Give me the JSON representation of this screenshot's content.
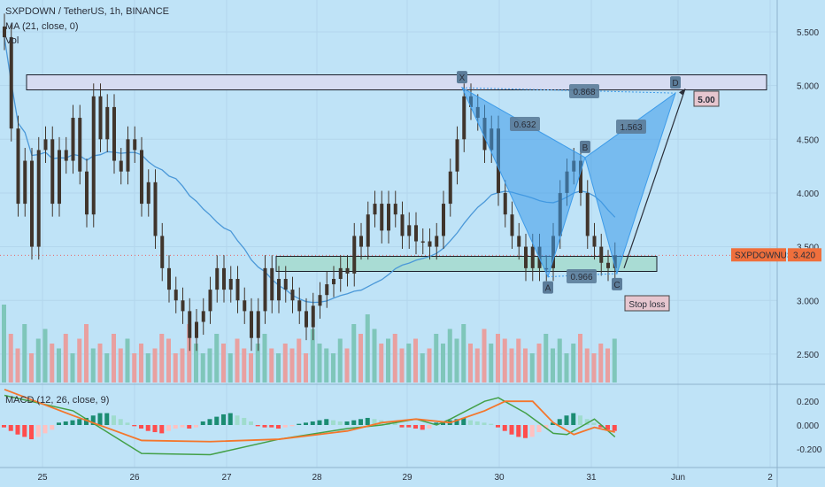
{
  "header": {
    "symbol_line": "SXPDOWN / TetherUS, 1h, BINANCE",
    "ma_line": "MA (21, close, 0)",
    "vol_line": "Vol",
    "macd_line": "MACD (12, 26, close, 9)"
  },
  "colors": {
    "background": "#bfe3f7",
    "bull": "#26a69a",
    "bear": "#ef5350",
    "candle_body": "#40352c",
    "ma": "#4b98d8",
    "pattern": "#3d9be9",
    "macd_line": "#43a047",
    "signal_line": "#f4762b"
  },
  "chart_data": {
    "type": "candlestick",
    "x_ticks": [
      "25",
      "26",
      "27",
      "28",
      "29",
      "30",
      "31",
      "Jun",
      "2"
    ],
    "y_ticks": [
      "5.500",
      "5.000",
      "4.500",
      "4.000",
      "3.500",
      "3.000",
      "2.500"
    ],
    "ylim": [
      2.15,
      5.75
    ],
    "close_series": [
      [
        0,
        5.45
      ],
      [
        1,
        4.6
      ],
      [
        2,
        3.9
      ],
      [
        3,
        4.3
      ],
      [
        4,
        3.5
      ],
      [
        5,
        4.4
      ],
      [
        6,
        4.5
      ],
      [
        7,
        3.9
      ],
      [
        8,
        4.4
      ],
      [
        9,
        4.3
      ],
      [
        10,
        4.7
      ],
      [
        11,
        4.2
      ],
      [
        12,
        3.8
      ],
      [
        13,
        4.9
      ],
      [
        14,
        4.5
      ],
      [
        15,
        4.8
      ],
      [
        16,
        4.3
      ],
      [
        17,
        4.2
      ],
      [
        18,
        4.5
      ],
      [
        19,
        4.4
      ],
      [
        20,
        3.9
      ],
      [
        21,
        4.1
      ],
      [
        22,
        3.6
      ],
      [
        23,
        3.3
      ],
      [
        24,
        3.1
      ],
      [
        25,
        3.0
      ],
      [
        26,
        2.9
      ],
      [
        27,
        2.65
      ],
      [
        28,
        2.8
      ],
      [
        29,
        2.9
      ],
      [
        30,
        3.1
      ],
      [
        31,
        3.3
      ],
      [
        32,
        3.1
      ],
      [
        33,
        3.2
      ],
      [
        34,
        3.0
      ],
      [
        35,
        2.9
      ],
      [
        36,
        2.65
      ],
      [
        37,
        2.9
      ],
      [
        38,
        3.3
      ],
      [
        39,
        3.0
      ],
      [
        40,
        3.2
      ],
      [
        41,
        3.1
      ],
      [
        42,
        3.0
      ],
      [
        43,
        2.9
      ],
      [
        44,
        2.75
      ],
      [
        45,
        2.95
      ],
      [
        46,
        3.05
      ],
      [
        47,
        3.15
      ],
      [
        48,
        3.2
      ],
      [
        49,
        3.3
      ],
      [
        50,
        3.25
      ],
      [
        51,
        3.6
      ],
      [
        52,
        3.5
      ],
      [
        53,
        3.8
      ],
      [
        54,
        3.9
      ],
      [
        55,
        3.65
      ],
      [
        56,
        3.9
      ],
      [
        57,
        3.8
      ],
      [
        58,
        3.6
      ],
      [
        59,
        3.7
      ],
      [
        60,
        3.55
      ],
      [
        61,
        3.55
      ],
      [
        62,
        3.5
      ],
      [
        63,
        3.6
      ],
      [
        64,
        3.9
      ],
      [
        65,
        4.2
      ],
      [
        66,
        4.5
      ],
      [
        67,
        4.9
      ],
      [
        68,
        4.8
      ],
      [
        69,
        4.7
      ],
      [
        70,
        4.4
      ],
      [
        71,
        4.6
      ],
      [
        72,
        4.0
      ],
      [
        73,
        3.8
      ],
      [
        74,
        3.6
      ],
      [
        75,
        3.5
      ],
      [
        76,
        3.3
      ],
      [
        77,
        3.5
      ],
      [
        78,
        3.3
      ],
      [
        79,
        3.3
      ],
      [
        80,
        3.6
      ],
      [
        81,
        4.0
      ],
      [
        82,
        4.2
      ],
      [
        83,
        4.3
      ],
      [
        84,
        4.0
      ],
      [
        85,
        3.6
      ],
      [
        86,
        3.5
      ],
      [
        87,
        3.35
      ],
      [
        88,
        3.3
      ],
      [
        89,
        3.42
      ]
    ],
    "ma_label": "MA (21, close, 0)",
    "current_price_label": "SXPDOWNUSDT",
    "current_price": "3.420",
    "pattern_points": [
      {
        "label": "X",
        "value": 4.98
      },
      {
        "label": "A",
        "value": 3.22
      },
      {
        "label": "B",
        "value": 4.33
      },
      {
        "label": "C",
        "value": 3.25
      },
      {
        "label": "D",
        "value": 4.93
      }
    ],
    "ratios": [
      "0.868",
      "0.632",
      "1.563",
      "0.966"
    ],
    "zones": [
      {
        "name": "resistance",
        "low": 4.96,
        "high": 5.1
      },
      {
        "name": "support",
        "low": 3.27,
        "high": 3.41
      }
    ],
    "annotations": [
      {
        "text": "5.00",
        "value": 5.0
      },
      {
        "text": "Stop loss",
        "value": 3.0
      }
    ],
    "volume": [
      0.8,
      0.5,
      0.35,
      0.6,
      0.3,
      0.45,
      0.55,
      0.4,
      0.35,
      0.5,
      0.3,
      0.45,
      0.6,
      0.35,
      0.4,
      0.3,
      0.5,
      0.35,
      0.45,
      0.3,
      0.4,
      0.3,
      0.35,
      0.5,
      0.45,
      0.3,
      0.35,
      0.6,
      0.4,
      0.3,
      0.35,
      0.5,
      0.4,
      0.3,
      0.45,
      0.35,
      0.3,
      0.4,
      0.5,
      0.35,
      0.3,
      0.4,
      0.35,
      0.45,
      0.3,
      0.55,
      0.4,
      0.35,
      0.3,
      0.45,
      0.35,
      0.6,
      0.5,
      0.7,
      0.55,
      0.4,
      0.45,
      0.5,
      0.35,
      0.4,
      0.45,
      0.3,
      0.35,
      0.5,
      0.4,
      0.55,
      0.45,
      0.6,
      0.4,
      0.35,
      0.55,
      0.4,
      0.5,
      0.45,
      0.35,
      0.45,
      0.35,
      0.3,
      0.4,
      0.5,
      0.35,
      0.45,
      0.3,
      0.4,
      0.5,
      0.35,
      0.3,
      0.4,
      0.35,
      0.45
    ],
    "macd": {
      "label": "MACD (12, 26, close, 9)",
      "y_ticks": [
        "0.200",
        "0.000",
        "-0.200"
      ],
      "ylim": [
        -0.31,
        0.28
      ],
      "histogram": [
        -0.02,
        -0.05,
        -0.08,
        -0.1,
        -0.12,
        -0.1,
        -0.07,
        -0.04,
        0.02,
        0.03,
        0.04,
        0.05,
        0.06,
        0.08,
        0.1,
        0.1,
        0.08,
        0.05,
        0.02,
        -0.01,
        -0.03,
        -0.05,
        -0.06,
        -0.07,
        -0.05,
        -0.03,
        -0.02,
        -0.03,
        -0.02,
        0.03,
        0.05,
        0.07,
        0.09,
        0.1,
        0.08,
        0.06,
        0.03,
        -0.01,
        -0.02,
        -0.02,
        -0.03,
        -0.02,
        -0.01,
        0.01,
        0.02,
        0.03,
        0.04,
        0.05,
        0.04,
        0.03,
        0.03,
        0.04,
        0.05,
        0.06,
        0.05,
        0.04,
        0.03,
        0.02,
        -0.02,
        -0.02,
        -0.03,
        -0.04,
        -0.03,
        0.02,
        0.03,
        0.04,
        0.05,
        0.06,
        0.04,
        0.03,
        0.02,
        0.01,
        -0.02,
        -0.05,
        -0.08,
        -0.1,
        -0.11,
        -0.1,
        -0.06,
        -0.03,
        0.02,
        0.05,
        0.08,
        0.1,
        0.08,
        0.05,
        0.02,
        -0.02,
        -0.04,
        -0.05
      ],
      "macd_line": [
        [
          0,
          0.25
        ],
        [
          10,
          0.12
        ],
        [
          20,
          -0.24
        ],
        [
          30,
          -0.25
        ],
        [
          40,
          -0.12
        ],
        [
          50,
          -0.03
        ],
        [
          55,
          0.0
        ],
        [
          60,
          0.05
        ],
        [
          63,
          0.0
        ],
        [
          65,
          0.05
        ],
        [
          70,
          0.2
        ],
        [
          72,
          0.23
        ],
        [
          76,
          0.1
        ],
        [
          80,
          -0.07
        ],
        [
          82,
          -0.08
        ],
        [
          86,
          0.05
        ],
        [
          89,
          -0.1
        ]
      ],
      "signal_line": [
        [
          0,
          0.3
        ],
        [
          10,
          0.08
        ],
        [
          20,
          -0.13
        ],
        [
          30,
          -0.14
        ],
        [
          40,
          -0.12
        ],
        [
          50,
          -0.05
        ],
        [
          55,
          0.02
        ],
        [
          60,
          0.05
        ],
        [
          65,
          0.02
        ],
        [
          70,
          0.12
        ],
        [
          73,
          0.2
        ],
        [
          77,
          0.2
        ],
        [
          80,
          0.02
        ],
        [
          83,
          -0.08
        ],
        [
          86,
          -0.02
        ],
        [
          89,
          -0.06
        ]
      ]
    }
  }
}
